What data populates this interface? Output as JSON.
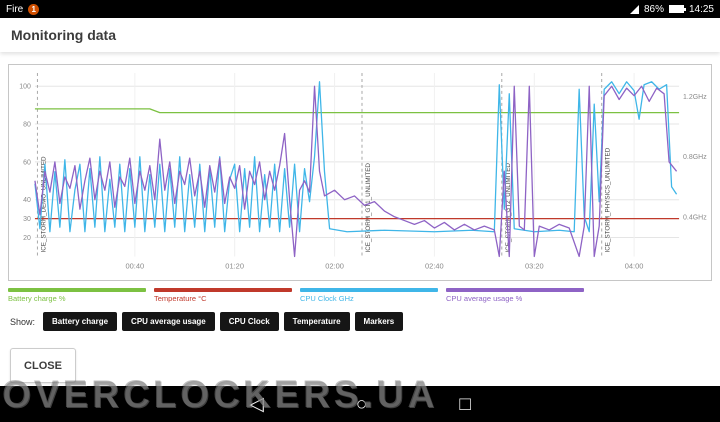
{
  "status_bar": {
    "device_label": "Fire",
    "notification_count": "1",
    "battery_percent": "86%",
    "time": "14:25"
  },
  "header": {
    "title": "Monitoring data"
  },
  "chart_data": {
    "type": "line",
    "title": "Monitoring data",
    "t_max": 258,
    "x_ticks": [
      {
        "t": 40,
        "label": "00:40"
      },
      {
        "t": 80,
        "label": "01:20"
      },
      {
        "t": 120,
        "label": "02:00"
      },
      {
        "t": 160,
        "label": "02:40"
      },
      {
        "t": 200,
        "label": "03:20"
      },
      {
        "t": 240,
        "label": "04:00"
      }
    ],
    "left_ticks": [
      20,
      30,
      40,
      60,
      80,
      100
    ],
    "right_ticks": [
      {
        "ghz": 0.4,
        "label": "0.4GHz"
      },
      {
        "ghz": 0.8,
        "label": "0.8GHz"
      },
      {
        "ghz": 1.2,
        "label": "1.2GHz"
      }
    ],
    "markers": [
      {
        "t": 1,
        "label": "ICE_STORM_DEMO_UNLIMITED"
      },
      {
        "t": 131,
        "label": "ICE_STORM_GT1_UNLIMITED"
      },
      {
        "t": 187,
        "label": "ICE_STORM_GT2_UNLIMITED"
      },
      {
        "t": 227,
        "label": "ICE_STORM_PHYSICS_UNLIMITED"
      }
    ],
    "series": [
      {
        "name": "Battery charge %",
        "unit": "percent",
        "color": "#7cc142",
        "points": [
          [
            0,
            88
          ],
          [
            46,
            88
          ],
          [
            50,
            86
          ],
          [
            258,
            86
          ]
        ]
      },
      {
        "name": "Temperature °C",
        "unit": "percent",
        "color": "#c0392b",
        "points": [
          [
            0,
            30
          ],
          [
            258,
            30
          ]
        ]
      },
      {
        "name": "CPU Clock GHz",
        "unit": "ghz",
        "color": "#3fb6e8",
        "points": [
          [
            0,
            0.62
          ],
          [
            2,
            0.32
          ],
          [
            4,
            0.75
          ],
          [
            6,
            0.3
          ],
          [
            8,
            0.7
          ],
          [
            10,
            0.33
          ],
          [
            12,
            0.78
          ],
          [
            14,
            0.3
          ],
          [
            16,
            0.58
          ],
          [
            18,
            0.75
          ],
          [
            20,
            0.3
          ],
          [
            22,
            0.72
          ],
          [
            24,
            0.33
          ],
          [
            26,
            0.8
          ],
          [
            28,
            0.3
          ],
          [
            30,
            0.65
          ],
          [
            32,
            0.33
          ],
          [
            34,
            0.75
          ],
          [
            36,
            0.3
          ],
          [
            38,
            0.72
          ],
          [
            40,
            0.33
          ],
          [
            42,
            0.8
          ],
          [
            44,
            0.3
          ],
          [
            46,
            0.68
          ],
          [
            48,
            0.33
          ],
          [
            50,
            0.75
          ],
          [
            52,
            0.3
          ],
          [
            54,
            0.72
          ],
          [
            56,
            0.33
          ],
          [
            58,
            0.8
          ],
          [
            60,
            0.3
          ],
          [
            62,
            0.68
          ],
          [
            64,
            0.33
          ],
          [
            66,
            0.75
          ],
          [
            68,
            0.3
          ],
          [
            70,
            0.72
          ],
          [
            72,
            0.33
          ],
          [
            74,
            0.8
          ],
          [
            76,
            0.3
          ],
          [
            78,
            0.65
          ],
          [
            80,
            0.75
          ],
          [
            82,
            0.3
          ],
          [
            84,
            0.72
          ],
          [
            86,
            0.33
          ],
          [
            88,
            0.8
          ],
          [
            90,
            0.3
          ],
          [
            92,
            0.68
          ],
          [
            94,
            0.33
          ],
          [
            96,
            0.75
          ],
          [
            98,
            0.3
          ],
          [
            100,
            0.72
          ],
          [
            102,
            0.33
          ],
          [
            104,
            0.75
          ],
          [
            106,
            0.3
          ],
          [
            108,
            0.72
          ],
          [
            110,
            0.5
          ],
          [
            112,
            0.8
          ],
          [
            114,
            1.3
          ],
          [
            116,
            0.7
          ],
          [
            118,
            0.32
          ],
          [
            125,
            0.3
          ],
          [
            140,
            0.31
          ],
          [
            160,
            0.3
          ],
          [
            175,
            0.31
          ],
          [
            184,
            0.3
          ],
          [
            186,
            1.28
          ],
          [
            188,
            0.45
          ],
          [
            190,
            1.22
          ],
          [
            192,
            0.32
          ],
          [
            200,
            0.3
          ],
          [
            210,
            0.31
          ],
          [
            216,
            0.3
          ],
          [
            218,
            1.25
          ],
          [
            220,
            0.4
          ],
          [
            222,
            0.3
          ],
          [
            224,
            1.15
          ],
          [
            226,
            0.5
          ],
          [
            228,
            1.25
          ],
          [
            231,
            1.3
          ],
          [
            234,
            1.22
          ],
          [
            237,
            1.3
          ],
          [
            240,
            1.24
          ],
          [
            242,
            1.05
          ],
          [
            244,
            1.28
          ],
          [
            247,
            1.3
          ],
          [
            250,
            1.25
          ],
          [
            253,
            1.28
          ],
          [
            255,
            0.6
          ],
          [
            257,
            0.55
          ]
        ]
      },
      {
        "name": "CPU average usage %",
        "unit": "percent",
        "color": "#8e63c5",
        "points": [
          [
            0,
            50
          ],
          [
            2,
            32
          ],
          [
            4,
            55
          ],
          [
            6,
            44
          ],
          [
            8,
            60
          ],
          [
            10,
            38
          ],
          [
            12,
            52
          ],
          [
            14,
            46
          ],
          [
            16,
            58
          ],
          [
            18,
            35
          ],
          [
            20,
            50
          ],
          [
            22,
            62
          ],
          [
            24,
            40
          ],
          [
            26,
            55
          ],
          [
            28,
            45
          ],
          [
            30,
            60
          ],
          [
            32,
            36
          ],
          [
            34,
            52
          ],
          [
            36,
            47
          ],
          [
            38,
            62
          ],
          [
            40,
            38
          ],
          [
            42,
            55
          ],
          [
            44,
            45
          ],
          [
            46,
            58
          ],
          [
            48,
            40
          ],
          [
            50,
            72
          ],
          [
            52,
            45
          ],
          [
            54,
            60
          ],
          [
            56,
            38
          ],
          [
            58,
            55
          ],
          [
            60,
            48
          ],
          [
            62,
            62
          ],
          [
            64,
            42
          ],
          [
            66,
            55
          ],
          [
            68,
            36
          ],
          [
            70,
            58
          ],
          [
            72,
            44
          ],
          [
            74,
            62
          ],
          [
            76,
            38
          ],
          [
            78,
            52
          ],
          [
            80,
            46
          ],
          [
            82,
            58
          ],
          [
            84,
            35
          ],
          [
            86,
            55
          ],
          [
            88,
            48
          ],
          [
            90,
            60
          ],
          [
            92,
            40
          ],
          [
            94,
            55
          ],
          [
            96,
            45
          ],
          [
            98,
            58
          ],
          [
            100,
            75
          ],
          [
            102,
            40
          ],
          [
            104,
            10
          ],
          [
            106,
            45
          ],
          [
            108,
            50
          ],
          [
            110,
            44
          ],
          [
            112,
            100
          ],
          [
            114,
            55
          ],
          [
            116,
            42
          ],
          [
            120,
            45
          ],
          [
            124,
            40
          ],
          [
            128,
            42
          ],
          [
            132,
            37
          ],
          [
            136,
            39
          ],
          [
            140,
            34
          ],
          [
            144,
            31
          ],
          [
            148,
            29
          ],
          [
            152,
            27
          ],
          [
            156,
            29
          ],
          [
            160,
            25
          ],
          [
            164,
            28
          ],
          [
            168,
            24
          ],
          [
            172,
            27
          ],
          [
            176,
            24
          ],
          [
            180,
            26
          ],
          [
            184,
            24
          ],
          [
            186,
            10
          ],
          [
            188,
            55
          ],
          [
            190,
            10
          ],
          [
            192,
            100
          ],
          [
            194,
            26
          ],
          [
            196,
            24
          ],
          [
            198,
            100
          ],
          [
            200,
            10
          ],
          [
            202,
            26
          ],
          [
            206,
            24
          ],
          [
            210,
            27
          ],
          [
            214,
            25
          ],
          [
            218,
            10
          ],
          [
            220,
            26
          ],
          [
            222,
            100
          ],
          [
            224,
            10
          ],
          [
            226,
            26
          ],
          [
            228,
            95
          ],
          [
            231,
            100
          ],
          [
            234,
            93
          ],
          [
            237,
            99
          ],
          [
            240,
            95
          ],
          [
            243,
            100
          ],
          [
            246,
            92
          ],
          [
            249,
            99
          ],
          [
            252,
            96
          ],
          [
            254,
            60
          ],
          [
            257,
            55
          ]
        ]
      }
    ],
    "legend_position": "bottom"
  },
  "legend": {
    "items": [
      {
        "label": "Battery charge %",
        "color": "#7cc142"
      },
      {
        "label": "Temperature °C",
        "color": "#c0392b"
      },
      {
        "label": "CPU Clock GHz",
        "color": "#3fb6e8"
      },
      {
        "label": "CPU average usage %",
        "color": "#8e63c5"
      }
    ]
  },
  "show": {
    "label": "Show:",
    "buttons": [
      "Battery charge",
      "CPU average usage",
      "CPU Clock",
      "Temperature",
      "Markers"
    ]
  },
  "close_button": "CLOSE",
  "watermark": "OVERCLOCKERS.UA",
  "navbar": {
    "back_icon": "◁",
    "home_icon": "○",
    "recents_icon": "□"
  }
}
